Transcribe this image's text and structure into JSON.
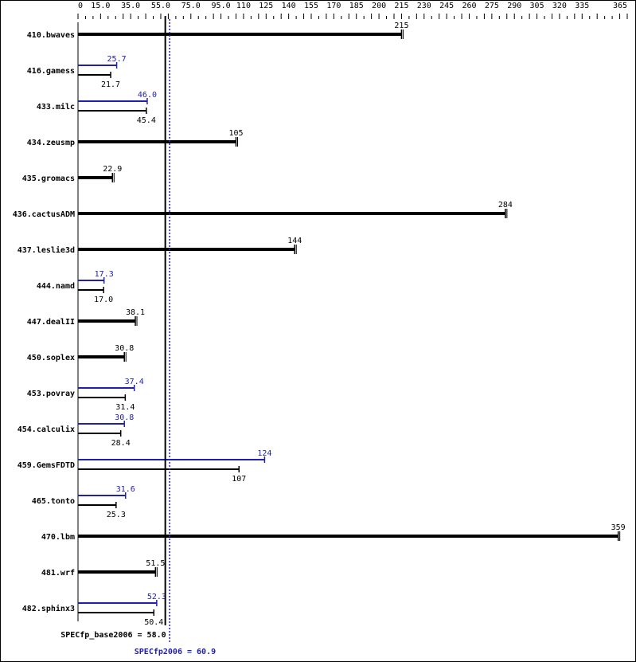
{
  "chart_data": {
    "type": "bar",
    "orientation": "horizontal",
    "xlim": [
      0,
      365
    ],
    "x_tick_labels": [
      "0",
      "15.0",
      "35.0",
      "55.0",
      "75.0",
      "95.0",
      "110",
      "125",
      "140",
      "155",
      "170",
      "185",
      "200",
      "215",
      "230",
      "245",
      "260",
      "275",
      "290",
      "305",
      "320",
      "335",
      "365"
    ],
    "x_tick_values": [
      0,
      15,
      35,
      55,
      75,
      95,
      110,
      125,
      140,
      155,
      170,
      185,
      200,
      215,
      230,
      245,
      260,
      275,
      290,
      305,
      320,
      335,
      365
    ],
    "categories": [
      "410.bwaves",
      "416.gamess",
      "433.milc",
      "434.zeusmp",
      "435.gromacs",
      "436.cactusADM",
      "437.leslie3d",
      "444.namd",
      "447.dealII",
      "450.soplex",
      "453.povray",
      "454.calculix",
      "459.GemsFDTD",
      "465.tonto",
      "470.lbm",
      "481.wrf",
      "482.sphinx3"
    ],
    "series": [
      {
        "key": "peak",
        "color": "#2020b0",
        "values": [
          215,
          25.7,
          46.0,
          105,
          22.9,
          284,
          144,
          17.3,
          38.1,
          30.8,
          37.4,
          30.8,
          124,
          31.6,
          359,
          51.5,
          52.3
        ],
        "labels": [
          "215",
          "25.7",
          "46.0",
          "105",
          "22.9",
          "284",
          "144",
          "17.3",
          "38.1",
          "30.8",
          "37.4",
          "30.8",
          "124",
          "31.6",
          "359",
          "51.5",
          "52.3"
        ]
      },
      {
        "key": "base",
        "color": "#000000",
        "values": [
          215,
          21.7,
          45.4,
          105,
          22.9,
          284,
          144,
          17.0,
          38.1,
          30.8,
          31.4,
          28.4,
          107,
          25.3,
          359,
          51.5,
          50.4
        ],
        "labels": [
          "215",
          "21.7",
          "45.4",
          "105",
          "22.9",
          "284",
          "144",
          "17.0",
          "38.1",
          "30.8",
          "31.4",
          "28.4",
          "107",
          "25.3",
          "359",
          "51.5",
          "50.4"
        ]
      }
    ],
    "reference_lines": [
      {
        "label": "SPECfp_base2006 = 58.0",
        "value": 58.0,
        "color": "#000000",
        "style": "solid"
      },
      {
        "label": "SPECfp2006 = 60.9",
        "value": 60.9,
        "color": "#2020b0",
        "style": "dotted"
      }
    ],
    "grid": false
  }
}
